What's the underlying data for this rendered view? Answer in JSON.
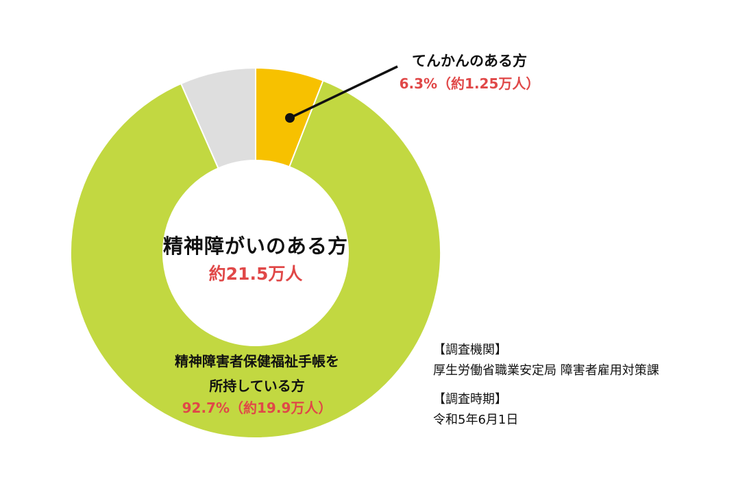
{
  "chart_data": {
    "type": "pie",
    "title": "精神障がいのある方",
    "total_label": "約21.5万人",
    "slices": [
      {
        "label": "てんかんのある方",
        "percent": 6.3,
        "value_label": "6.3%（約1.25万人）",
        "color": "#f7c100"
      },
      {
        "label": "精神障害者保健福祉手帳を所持している方",
        "label_lines": [
          "精神障害者保健福祉手帳を",
          "所持している方"
        ],
        "percent": 92.7,
        "value_label": "92.7%（約19.9万人）",
        "color": "#c2d841"
      },
      {
        "label": "",
        "percent": 7.0,
        "value_label": "",
        "color": "#dedede"
      }
    ]
  },
  "source": {
    "org_heading": "【調査機関】",
    "org_text": "厚生労働省職業安定局 障害者雇用対策課",
    "date_heading": "【調査時期】",
    "date_text": "令和5年6月1日"
  }
}
